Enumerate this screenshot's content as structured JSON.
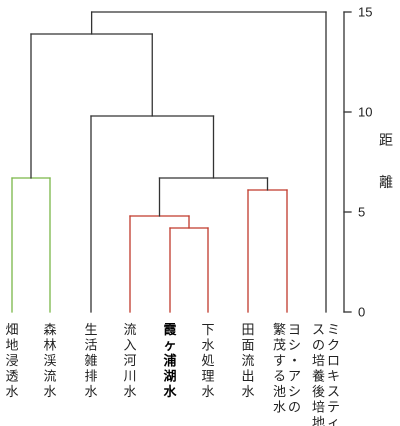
{
  "chart_data": {
    "type": "dendrogram",
    "title": "",
    "ylabel": "距離",
    "ylim": [
      0,
      15
    ],
    "yticks": [
      0,
      5,
      10,
      15
    ],
    "leaves": [
      {
        "label": "畑地浸透水",
        "bold": false
      },
      {
        "label": "森林渓流水",
        "bold": false
      },
      {
        "label": "生活雑排水",
        "bold": false
      },
      {
        "label": "流入河川水",
        "bold": false
      },
      {
        "label": "霞ヶ浦湖水",
        "bold": true
      },
      {
        "label": "下水処理水",
        "bold": false
      },
      {
        "label": "田面流出水",
        "bold": false
      },
      {
        "label": "ヨシ・アシの繁茂する池水",
        "bold": false
      },
      {
        "label": "ミクロキスティスの培養後培地",
        "bold": false
      }
    ],
    "merges": [
      {
        "left": "leaf:0",
        "right": "leaf:1",
        "height": 6.7,
        "color": "#7ab648"
      },
      {
        "left": "leaf:4",
        "right": "leaf:5",
        "height": 4.2,
        "color": "#c0392b"
      },
      {
        "left": "leaf:3",
        "right": "merge:1",
        "height": 4.8,
        "color": "#c0392b"
      },
      {
        "left": "leaf:6",
        "right": "leaf:7",
        "height": 6.1,
        "color": "#c0392b"
      },
      {
        "left": "merge:2",
        "right": "merge:3",
        "height": 6.7,
        "color": "#333333"
      },
      {
        "left": "leaf:2",
        "right": "merge:4",
        "height": 9.8,
        "color": "#333333"
      },
      {
        "left": "merge:0",
        "right": "merge:5",
        "height": 13.9,
        "color": "#333333"
      },
      {
        "left": "merge:6",
        "right": "leaf:8",
        "height": 15.0,
        "color": "#333333"
      }
    ]
  }
}
